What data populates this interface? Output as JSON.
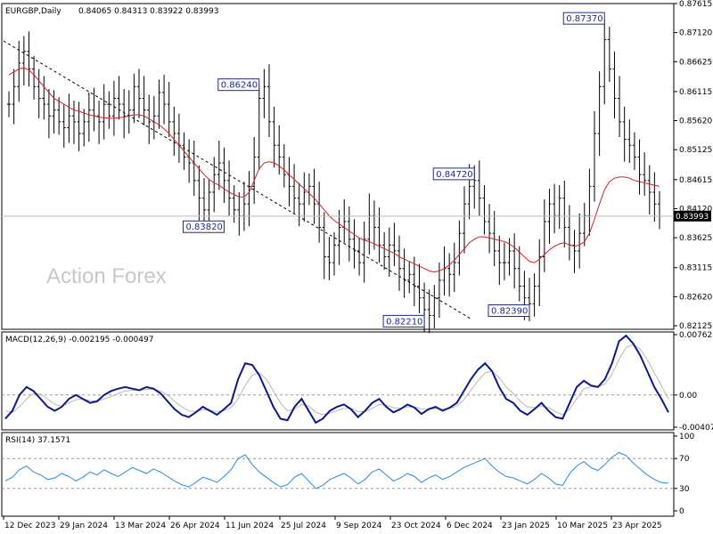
{
  "chart_data": {
    "type": "candlestick",
    "symbol_label": "EURGBP,Daily",
    "ohlc_label": "0.84065 0.84313 0.83922 0.83993",
    "watermark": "Action Forex",
    "current_price": "0.83993",
    "price_axis": {
      "ticks": [
        "0.87615",
        "0.87120",
        "0.86625",
        "0.86115",
        "0.85620",
        "0.85125",
        "0.84615",
        "0.84120",
        "0.83625",
        "0.83115",
        "0.82620",
        "0.82125"
      ],
      "range": [
        0.82125,
        0.87615
      ]
    },
    "date_axis": {
      "ticks": [
        "12 Dec 2023",
        "29 Jan 2024",
        "13 Mar 2024",
        "26 Apr 2024",
        "11 Jun 2024",
        "25 Jul 2024",
        "9 Sep 2024",
        "23 Oct 2024",
        "6 Dec 2024",
        "23 Jan 2025",
        "10 Mar 2025",
        "23 Apr 2025"
      ]
    },
    "price_closes": [
      0.859,
      0.862,
      0.866,
      0.868,
      0.865,
      0.862,
      0.86,
      0.859,
      0.857,
      0.858,
      0.856,
      0.855,
      0.857,
      0.856,
      0.854,
      0.856,
      0.858,
      0.857,
      0.856,
      0.859,
      0.857,
      0.86,
      0.859,
      0.857,
      0.858,
      0.862,
      0.86,
      0.858,
      0.856,
      0.857,
      0.861,
      0.859,
      0.856,
      0.854,
      0.852,
      0.85,
      0.849,
      0.846,
      0.843,
      0.841,
      0.844,
      0.847,
      0.849,
      0.846,
      0.843,
      0.841,
      0.84,
      0.842,
      0.845,
      0.85,
      0.86,
      0.862,
      0.856,
      0.852,
      0.85,
      0.847,
      0.845,
      0.843,
      0.842,
      0.844,
      0.845,
      0.842,
      0.838,
      0.833,
      0.832,
      0.835,
      0.838,
      0.839,
      0.836,
      0.834,
      0.832,
      0.836,
      0.84,
      0.838,
      0.835,
      0.833,
      0.835,
      0.834,
      0.831,
      0.829,
      0.83,
      0.828,
      0.826,
      0.824,
      0.823,
      0.826,
      0.829,
      0.831,
      0.83,
      0.832,
      0.837,
      0.842,
      0.845,
      0.846,
      0.843,
      0.839,
      0.837,
      0.834,
      0.832,
      0.832,
      0.834,
      0.831,
      0.828,
      0.826,
      0.825,
      0.828,
      0.833,
      0.839,
      0.842,
      0.84,
      0.843,
      0.838,
      0.835,
      0.834,
      0.837,
      0.84,
      0.845,
      0.854,
      0.862,
      0.87,
      0.865,
      0.86,
      0.856,
      0.853,
      0.852,
      0.85,
      0.847,
      0.846,
      0.844,
      0.842,
      0.8399
    ],
    "ma_values": [
      0.864,
      0.8645,
      0.865,
      0.8652,
      0.8648,
      0.864,
      0.863,
      0.862,
      0.861,
      0.86,
      0.8595,
      0.859,
      0.8585,
      0.858,
      0.8578,
      0.8575,
      0.8572,
      0.857,
      0.8568,
      0.8567,
      0.8566,
      0.8566,
      0.8567,
      0.8568,
      0.857,
      0.8572,
      0.8572,
      0.857,
      0.8565,
      0.856,
      0.8555,
      0.8548,
      0.854,
      0.853,
      0.852,
      0.851,
      0.85,
      0.849,
      0.848,
      0.847,
      0.8462,
      0.8456,
      0.8452,
      0.8446,
      0.844,
      0.8436,
      0.8432,
      0.8432,
      0.844,
      0.846,
      0.848,
      0.849,
      0.8492,
      0.849,
      0.8485,
      0.8478,
      0.847,
      0.8462,
      0.8454,
      0.8446,
      0.8438,
      0.843,
      0.842,
      0.841,
      0.84,
      0.8392,
      0.8386,
      0.838,
      0.8374,
      0.8368,
      0.8362,
      0.8358,
      0.8356,
      0.8352,
      0.8348,
      0.8344,
      0.834,
      0.8336,
      0.833,
      0.8326,
      0.8322,
      0.8318,
      0.8314,
      0.831,
      0.8306,
      0.8304,
      0.8306,
      0.831,
      0.8316,
      0.8324,
      0.8334,
      0.8344,
      0.8354,
      0.836,
      0.8364,
      0.8364,
      0.8362,
      0.836,
      0.8358,
      0.8356,
      0.8352,
      0.8346,
      0.8338,
      0.833,
      0.8322,
      0.832,
      0.8326,
      0.8334,
      0.8342,
      0.8348,
      0.8352,
      0.8354,
      0.835,
      0.8348,
      0.835,
      0.8356,
      0.837,
      0.8394,
      0.842,
      0.8444,
      0.8458,
      0.8464,
      0.8466,
      0.8466,
      0.8464,
      0.846,
      0.8458,
      0.8456,
      0.8454,
      0.8452,
      0.845
    ],
    "callouts": [
      {
        "label": "0.87370",
        "value": 0.8737,
        "idx": 119
      },
      {
        "label": "0.86240",
        "value": 0.8624,
        "idx": 50
      },
      {
        "label": "0.84720",
        "value": 0.8472,
        "idx": 93
      },
      {
        "label": "0.83820",
        "value": 0.8382,
        "idx": 43
      },
      {
        "label": "0.82210",
        "value": 0.8221,
        "idx": 83
      },
      {
        "label": "0.82390",
        "value": 0.8239,
        "idx": 104
      }
    ],
    "macd": {
      "label": "MACD(12,26,9) -0.002195 -0.000497",
      "ticks": [
        "0.007623",
        "0.00",
        "-0.004073"
      ],
      "range": [
        -0.004073,
        0.007623
      ],
      "macd_values": [
        -0.003,
        -0.002,
        0.0,
        0.001,
        0.0005,
        -0.0005,
        -0.0015,
        -0.002,
        -0.0015,
        -0.0005,
        0.0,
        -0.0005,
        -0.001,
        -0.0008,
        0.0,
        0.0005,
        0.0008,
        0.001,
        0.0008,
        0.0006,
        0.001,
        0.0008,
        0.0002,
        -0.0008,
        -0.0018,
        -0.0025,
        -0.0028,
        -0.0022,
        -0.0015,
        -0.002,
        -0.0025,
        -0.0018,
        -0.001,
        0.002,
        0.004,
        0.0038,
        0.0025,
        0.0005,
        -0.0015,
        -0.003,
        -0.0032,
        -0.0015,
        -0.0005,
        -0.002,
        -0.0035,
        -0.003,
        -0.002,
        -0.0015,
        -0.0012,
        -0.0018,
        -0.0028,
        -0.002,
        -0.001,
        -0.0005,
        -0.0015,
        -0.0022,
        -0.0018,
        -0.0012,
        -0.0016,
        -0.0024,
        -0.0018,
        -0.0015,
        -0.002,
        -0.0016,
        -0.001,
        0.0005,
        0.002,
        0.0032,
        0.004,
        0.003,
        0.001,
        -0.0005,
        -0.001,
        -0.002,
        -0.0025,
        -0.0018,
        -0.001,
        -0.002,
        -0.0028,
        -0.003,
        -0.001,
        0.001,
        0.0018,
        0.0012,
        0.001,
        0.002,
        0.004,
        0.0068,
        0.0075,
        0.0065,
        0.005,
        0.003,
        0.001,
        -0.0005,
        -0.0022
      ],
      "signal_values": [
        -0.002,
        -0.0022,
        -0.0015,
        -0.0005,
        0.0002,
        0.0001,
        -0.0005,
        -0.0012,
        -0.0014,
        -0.001,
        -0.0006,
        -0.0005,
        -0.0007,
        -0.0008,
        -0.0005,
        -0.0002,
        0.0002,
        0.0005,
        0.0006,
        0.0006,
        0.0007,
        0.0007,
        0.0005,
        0.0,
        -0.0008,
        -0.0015,
        -0.002,
        -0.0021,
        -0.0019,
        -0.0019,
        -0.0021,
        -0.002,
        -0.0016,
        -0.0005,
        0.0012,
        0.0025,
        0.0028,
        0.002,
        0.0005,
        -0.001,
        -0.002,
        -0.0018,
        -0.0012,
        -0.0014,
        -0.0022,
        -0.0025,
        -0.0023,
        -0.002,
        -0.0017,
        -0.0017,
        -0.0021,
        -0.0021,
        -0.0017,
        -0.0012,
        -0.0013,
        -0.0016,
        -0.0017,
        -0.0015,
        -0.0015,
        -0.0018,
        -0.0018,
        -0.0017,
        -0.0018,
        -0.0017,
        -0.0014,
        -0.0006,
        0.0006,
        0.0018,
        0.0028,
        0.003,
        0.0022,
        0.001,
        0.0002,
        -0.0008,
        -0.0015,
        -0.0016,
        -0.0014,
        -0.0016,
        -0.0021,
        -0.0025,
        -0.0018,
        -0.0005,
        0.0008,
        0.001,
        0.001,
        0.0014,
        0.0026,
        0.0045,
        0.006,
        0.0064,
        0.0058,
        0.0045,
        0.0028,
        0.0012,
        -0.0005
      ]
    },
    "rsi": {
      "label": "RSI(14) 37.1571",
      "ticks": [
        "100",
        "70",
        "30",
        "0"
      ],
      "levels": [
        70,
        30
      ],
      "range": [
        0,
        100
      ],
      "values": [
        40,
        45,
        55,
        60,
        52,
        48,
        42,
        44,
        50,
        46,
        40,
        45,
        52,
        48,
        55,
        50,
        46,
        52,
        58,
        54,
        50,
        56,
        52,
        46,
        40,
        35,
        32,
        38,
        45,
        42,
        38,
        46,
        55,
        70,
        75,
        62,
        52,
        45,
        38,
        32,
        35,
        45,
        50,
        40,
        30,
        34,
        42,
        46,
        50,
        44,
        36,
        42,
        52,
        56,
        48,
        40,
        44,
        50,
        46,
        38,
        44,
        48,
        42,
        46,
        52,
        58,
        62,
        66,
        70,
        60,
        52,
        46,
        44,
        40,
        36,
        42,
        50,
        44,
        36,
        34,
        50,
        60,
        66,
        58,
        54,
        62,
        72,
        78,
        74,
        64,
        56,
        48,
        42,
        38,
        37
      ]
    }
  }
}
